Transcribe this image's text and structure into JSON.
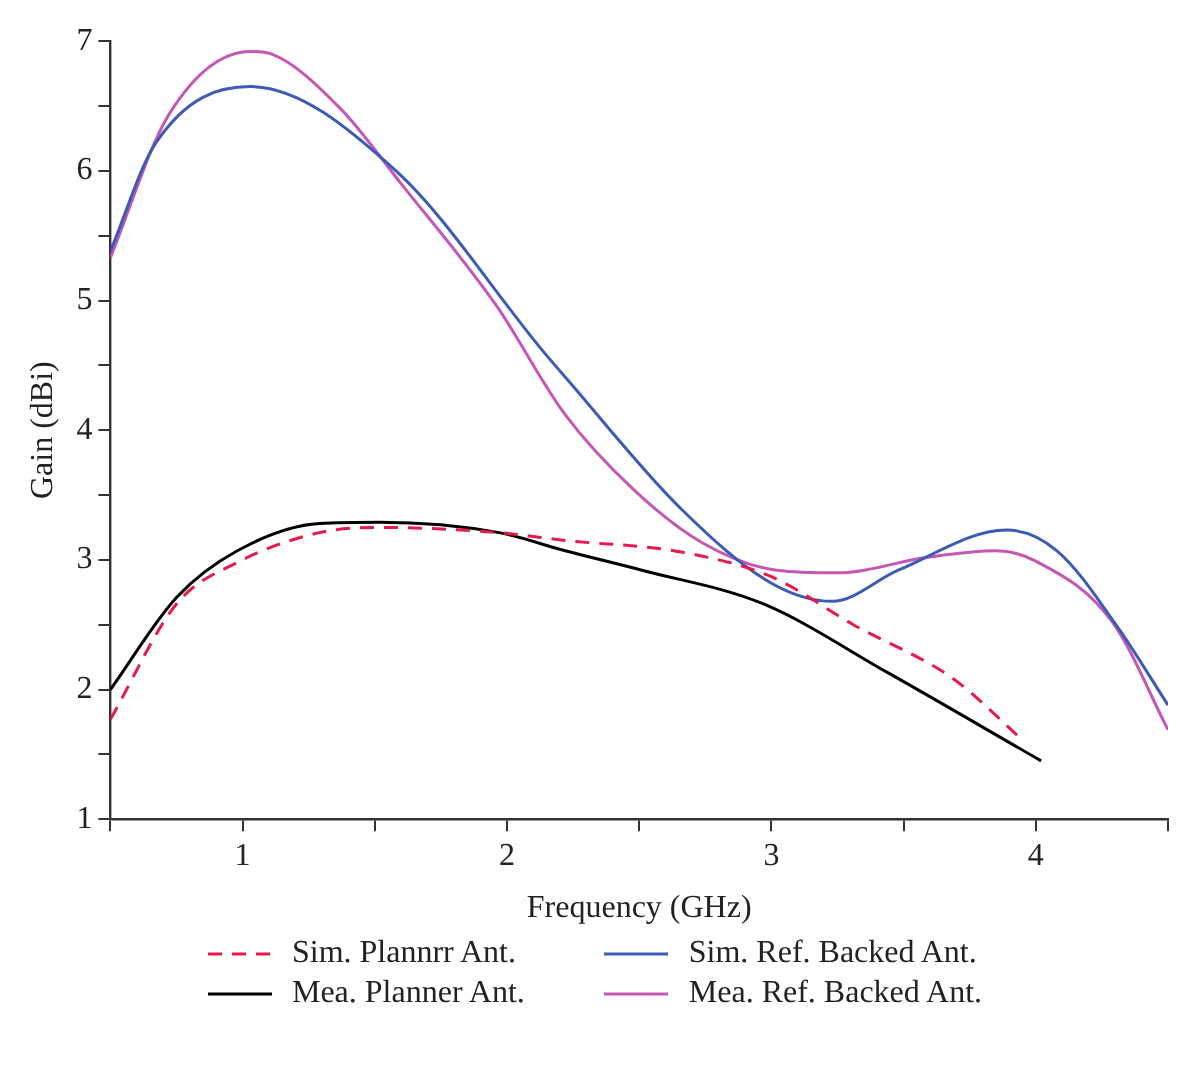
{
  "chart_data": {
    "type": "line",
    "xlabel": "Frequency (GHz)",
    "ylabel": "Gain (dBi)",
    "xlim": [
      0.5,
      4.5
    ],
    "ylim": [
      1,
      7
    ],
    "xticks": [
      {
        "value": 0.5,
        "label": null
      },
      1,
      {
        "value": 1.5,
        "label": null
      },
      2,
      {
        "value": 2.5,
        "label": null
      },
      3,
      {
        "value": 3.5,
        "label": null
      },
      4,
      {
        "value": 4.5,
        "label": null
      }
    ],
    "yticks": [
      1,
      {
        "value": 1.5,
        "label": null
      },
      2,
      {
        "value": 2.5,
        "label": null
      },
      3,
      {
        "value": 3.5,
        "label": null
      },
      4,
      {
        "value": 4.5,
        "label": null
      },
      5,
      {
        "value": 5.5,
        "label": null
      },
      6,
      {
        "value": 6.5,
        "label": null
      },
      7
    ],
    "grid": false,
    "legend": "bottom",
    "marker": "none",
    "series": [
      {
        "name": "Sim. Plannrr Ant.",
        "color": "#e8194b",
        "line_style": "dashed",
        "x": [
          0.5,
          0.75,
          0.98,
          1.29,
          1.52,
          1.97,
          2.22,
          2.66,
          3.0,
          3.31,
          3.69,
          3.95
        ],
        "values": [
          1.77,
          2.66,
          2.98,
          3.21,
          3.25,
          3.21,
          3.15,
          3.06,
          2.87,
          2.5,
          2.08,
          1.61
        ]
      },
      {
        "name": "Mea. Planner Ant.",
        "color": "#000000",
        "line_style": "solid",
        "x": [
          0.5,
          0.75,
          0.98,
          1.29,
          1.52,
          1.97,
          2.22,
          2.51,
          2.97,
          3.44,
          4.02
        ],
        "values": [
          2.0,
          2.71,
          3.07,
          3.28,
          3.29,
          3.21,
          3.07,
          2.92,
          2.66,
          2.13,
          1.45
        ]
      },
      {
        "name": "Sim. Ref. Backed Ant.",
        "color": "#3b5bb5",
        "line_style": "solid",
        "x": [
          0.5,
          0.67,
          1.03,
          1.58,
          2.14,
          2.22,
          2.66,
          3.0,
          3.23,
          3.48,
          3.89,
          4.08,
          4.31,
          4.5
        ],
        "values": [
          5.38,
          6.21,
          6.65,
          6.0,
          4.6,
          4.41,
          3.39,
          2.82,
          2.68,
          2.92,
          3.23,
          3.07,
          2.48,
          1.88
        ]
      },
      {
        "name": "Mea. Ref. Backed Ant.",
        "color": "#c458b4",
        "line_style": "solid",
        "x": [
          0.5,
          0.72,
          1.03,
          1.11,
          1.37,
          1.6,
          1.96,
          2.22,
          2.48,
          2.74,
          3.02,
          3.25,
          3.59,
          3.85,
          4.0,
          4.29,
          4.5
        ],
        "values": [
          5.33,
          6.43,
          6.92,
          6.9,
          6.48,
          5.9,
          4.96,
          4.12,
          3.54,
          3.13,
          2.92,
          2.9,
          3.02,
          3.07,
          2.99,
          2.52,
          1.69
        ]
      }
    ]
  }
}
